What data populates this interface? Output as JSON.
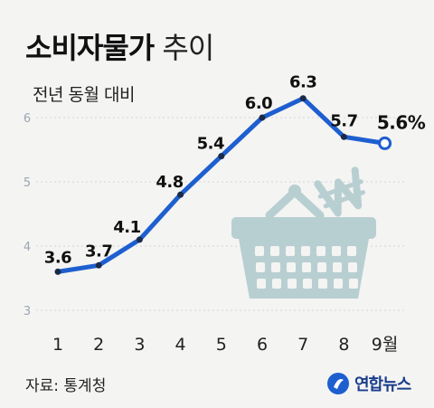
{
  "header": {
    "title_bold": "소비자물가",
    "title_light": "추이",
    "subtitle": "전년 동월 대비"
  },
  "footer": {
    "source": "자료: 통계청",
    "logo_text": "연합뉴스"
  },
  "colors": {
    "line": "#1e5fd0",
    "basket": "#b8cfd2",
    "background": "#f4f4f2"
  },
  "chart_data": {
    "type": "line",
    "x": [
      1,
      2,
      3,
      4,
      5,
      6,
      7,
      8,
      9
    ],
    "x_tick_labels": [
      "1",
      "2",
      "3",
      "4",
      "5",
      "6",
      "7",
      "8",
      "9월"
    ],
    "values": [
      3.6,
      3.7,
      4.1,
      4.8,
      5.4,
      6.0,
      6.3,
      5.7,
      5.6
    ],
    "data_labels": [
      "3.6",
      "3.7",
      "4.1",
      "4.8",
      "5.4",
      "6.0",
      "6.3",
      "5.7",
      "5.6%"
    ],
    "y_ticks": [
      "3",
      "4",
      "5",
      "6"
    ],
    "ylim": [
      3,
      6.5
    ],
    "grid": true,
    "title": "소비자물가 추이",
    "ylabel": "전년 동월 대비"
  }
}
